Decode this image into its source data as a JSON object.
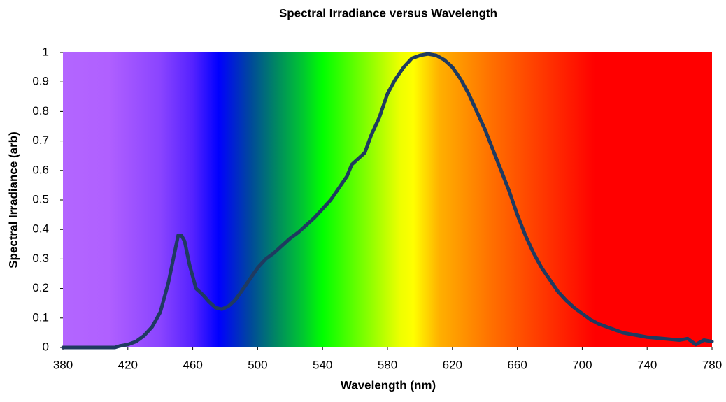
{
  "chart_data": {
    "type": "line",
    "title": "Spectral Irradiance versus Wavelength",
    "x_label": "Wavelength (nm)",
    "y_label": "Spectral Irradiance (arb)",
    "x": [
      380,
      390,
      400,
      410,
      412,
      415,
      420,
      425,
      430,
      435,
      440,
      445,
      448,
      451,
      453,
      455,
      458,
      462,
      466,
      470,
      474,
      478,
      482,
      486,
      490,
      495,
      500,
      505,
      510,
      515,
      520,
      525,
      530,
      535,
      540,
      545,
      550,
      555,
      558,
      562,
      566,
      570,
      575,
      580,
      585,
      590,
      595,
      600,
      605,
      610,
      615,
      620,
      625,
      630,
      635,
      640,
      645,
      650,
      655,
      660,
      665,
      670,
      675,
      680,
      685,
      690,
      695,
      700,
      705,
      710,
      715,
      720,
      725,
      730,
      740,
      750,
      760,
      765,
      770,
      775,
      780
    ],
    "series": [
      {
        "name": "Spectral Irradiance",
        "color": "#1f3a60",
        "values": [
          0,
          0,
          0,
          0,
          0,
          0.005,
          0.01,
          0.02,
          0.04,
          0.07,
          0.12,
          0.22,
          0.3,
          0.38,
          0.38,
          0.36,
          0.28,
          0.2,
          0.18,
          0.155,
          0.135,
          0.13,
          0.14,
          0.16,
          0.19,
          0.23,
          0.27,
          0.3,
          0.32,
          0.345,
          0.37,
          0.39,
          0.415,
          0.44,
          0.47,
          0.5,
          0.54,
          0.58,
          0.62,
          0.64,
          0.66,
          0.72,
          0.78,
          0.86,
          0.91,
          0.95,
          0.98,
          0.99,
          0.995,
          0.99,
          0.975,
          0.95,
          0.91,
          0.86,
          0.8,
          0.74,
          0.67,
          0.6,
          0.53,
          0.45,
          0.38,
          0.32,
          0.27,
          0.23,
          0.19,
          0.16,
          0.135,
          0.115,
          0.095,
          0.08,
          0.07,
          0.06,
          0.05,
          0.045,
          0.035,
          0.03,
          0.025,
          0.03,
          0.01,
          0.025,
          0.02
        ]
      }
    ],
    "xlim": [
      380,
      780
    ],
    "xticks": [
      380,
      420,
      460,
      500,
      540,
      580,
      620,
      660,
      700,
      740,
      780
    ],
    "ylim": [
      0,
      1
    ],
    "yticks": [
      0,
      0.1,
      0.2,
      0.3,
      0.4,
      0.5,
      0.6,
      0.7,
      0.8,
      0.9,
      1
    ]
  }
}
